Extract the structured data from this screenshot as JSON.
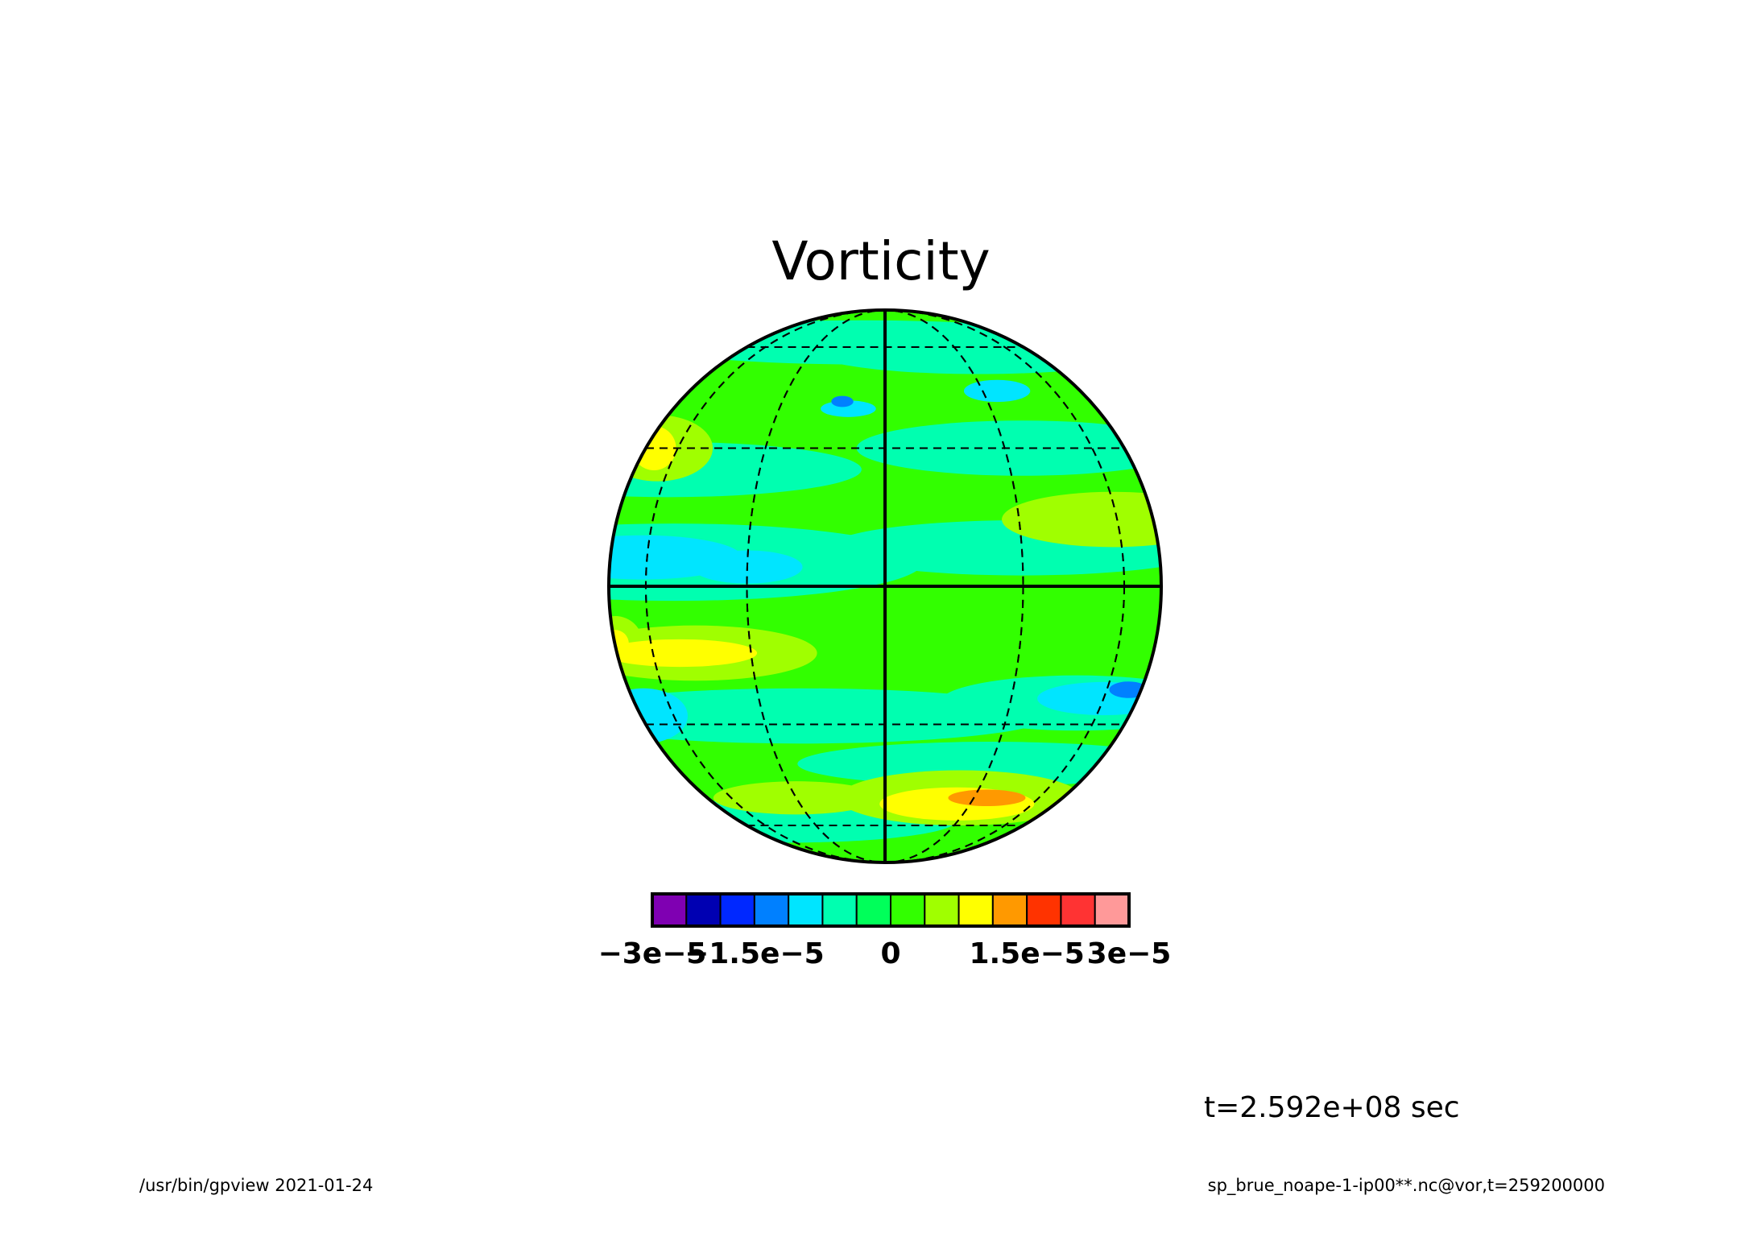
{
  "figure": {
    "title": "Vorticity",
    "time_label": "t=2.592e+08 sec",
    "footer_left": "/usr/bin/gpview  2021-01-24",
    "footer_right": "sp_brue_noape-1-ip00**.nc@vor,t=259200000"
  },
  "colorbar": {
    "colors": [
      "#7f00b2",
      "#0000b2",
      "#0028ff",
      "#0080ff",
      "#00e5ff",
      "#00ffb0",
      "#00ff5a",
      "#32ff00",
      "#a0ff00",
      "#ffff00",
      "#ff9900",
      "#ff3300",
      "#ff3333",
      "#ff9999"
    ],
    "tick_labels": [
      "−3e−5",
      "−1.5e−5",
      "0",
      "1.5e−5",
      "3e−5"
    ]
  },
  "map": {
    "projection": "orthographic",
    "background_color": "#32ff00",
    "gridlines": "dashed",
    "features": [
      {
        "color": "#00ffb0",
        "lon": -60,
        "lat": 25,
        "rx": 0.35,
        "ry": 0.05
      },
      {
        "color": "#00ffb0",
        "lon": 35,
        "lat": 30,
        "rx": 0.3,
        "ry": 0.05
      },
      {
        "color": "#00ffb0",
        "lon": -10,
        "lat": 62,
        "rx": 0.4,
        "ry": 0.04
      },
      {
        "color": "#00ffb0",
        "lon": 40,
        "lat": 58,
        "rx": 0.3,
        "ry": 0.04
      },
      {
        "color": "#00ffb0",
        "lon": -50,
        "lat": 5,
        "rx": 0.45,
        "ry": 0.07
      },
      {
        "color": "#00ffb0",
        "lon": 30,
        "lat": 8,
        "rx": 0.35,
        "ry": 0.05
      },
      {
        "color": "#00ffb0",
        "lon": -20,
        "lat": -28,
        "rx": 0.45,
        "ry": 0.05
      },
      {
        "color": "#00ffb0",
        "lon": 30,
        "lat": -40,
        "rx": 0.35,
        "ry": 0.04
      },
      {
        "color": "#00ffb0",
        "lon": -40,
        "lat": -58,
        "rx": 0.3,
        "ry": 0.04
      },
      {
        "color": "#00ffb0",
        "lon": 50,
        "lat": -25,
        "rx": 0.25,
        "ry": 0.05
      },
      {
        "color": "#00e5ff",
        "lon": -62,
        "lat": 6,
        "rx": 0.18,
        "ry": 0.04
      },
      {
        "color": "#00e5ff",
        "lon": -30,
        "lat": 4,
        "rx": 0.1,
        "ry": 0.03
      },
      {
        "color": "#00e5ff",
        "lon": -82,
        "lat": -28,
        "rx": 0.08,
        "ry": 0.05
      },
      {
        "color": "#00e5ff",
        "lon": 60,
        "lat": -24,
        "rx": 0.12,
        "ry": 0.03
      },
      {
        "color": "#00e5ff",
        "lon": 35,
        "lat": 45,
        "rx": 0.06,
        "ry": 0.02
      },
      {
        "color": "#00e5ff",
        "lon": -10,
        "lat": 40,
        "rx": 0.05,
        "ry": 0.015
      },
      {
        "color": "#0080ff",
        "lon": 72,
        "lat": -22,
        "rx": 0.035,
        "ry": 0.015
      },
      {
        "color": "#0080ff",
        "lon": -12,
        "lat": 42,
        "rx": 0.02,
        "ry": 0.01
      },
      {
        "color": "#a0ff00",
        "lon": -72,
        "lat": 30,
        "rx": 0.1,
        "ry": 0.06
      },
      {
        "color": "#a0ff00",
        "lon": -45,
        "lat": -14,
        "rx": 0.22,
        "ry": 0.05
      },
      {
        "color": "#a0ff00",
        "lon": 25,
        "lat": -50,
        "rx": 0.22,
        "ry": 0.05
      },
      {
        "color": "#a0ff00",
        "lon": 58,
        "lat": 14,
        "rx": 0.2,
        "ry": 0.05
      },
      {
        "color": "#a0ff00",
        "lon": -30,
        "lat": -50,
        "rx": 0.15,
        "ry": 0.03
      },
      {
        "color": "#a0ff00",
        "lon": -87,
        "lat": -12,
        "rx": 0.05,
        "ry": 0.05
      },
      {
        "color": "#ffff00",
        "lon": -75,
        "lat": 30,
        "rx": 0.04,
        "ry": 0.04
      },
      {
        "color": "#ffff00",
        "lon": -50,
        "lat": -14,
        "rx": 0.14,
        "ry": 0.025
      },
      {
        "color": "#ffff00",
        "lon": 25,
        "lat": -52,
        "rx": 0.14,
        "ry": 0.03
      },
      {
        "color": "#ffff00",
        "lon": -88,
        "lat": -12,
        "rx": 0.025,
        "ry": 0.025
      },
      {
        "color": "#ff9900",
        "lon": 35,
        "lat": -50,
        "rx": 0.07,
        "ry": 0.015
      }
    ]
  }
}
